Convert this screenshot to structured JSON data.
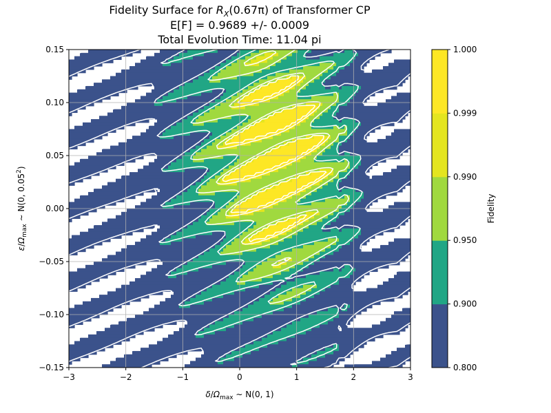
{
  "chart_data": {
    "type": "heatmap",
    "subtype": "filled-contour",
    "title": {
      "prefix": "Fidelity Surface for ",
      "math_base": "R",
      "math_sub": "X",
      "math_arg": "(0.67π)",
      "suffix": " of Transformer CP",
      "line2": "E[F] = 0.9689 +/- 0.0009",
      "line3": "Total Evolution Time: 11.04 pi"
    },
    "xlabel": {
      "symbol": "δ",
      "denominator": "Ω",
      "denominator_sub": "max",
      "dist": "N(0, 1)"
    },
    "ylabel": {
      "symbol": "ε",
      "denominator": "Ω",
      "denominator_sub": "max",
      "dist": "N(0, 0.05",
      "dist_sup": "2",
      "dist_close": ")"
    },
    "xlim": [
      -3,
      3
    ],
    "ylim": [
      -0.15,
      0.15
    ],
    "x_ticks": [
      -3,
      -2,
      -1,
      0,
      1,
      2,
      3
    ],
    "y_ticks": [
      -0.15,
      -0.1,
      -0.05,
      0.0,
      0.05,
      0.1,
      0.15
    ],
    "x_tick_labels": [
      "−3",
      "−2",
      "−1",
      "0",
      "1",
      "2",
      "3"
    ],
    "y_tick_labels": [
      "−0.15",
      "−0.10",
      "−0.05",
      "0.00",
      "0.05",
      "0.10",
      "0.15"
    ],
    "grid": true,
    "levels": [
      0.8,
      0.9,
      0.95,
      0.99,
      0.999,
      1.0
    ],
    "level_colors": [
      "#3b528b",
      "#21a685",
      "#a0d93f",
      "#e4e51f",
      "#fde725"
    ],
    "colorbar": {
      "label": "Fidelity",
      "tick_labels": [
        "0.800",
        "0.900",
        "0.950",
        "0.990",
        "0.999",
        "1.000"
      ]
    },
    "contour_line_color": "#ffffff",
    "peak_center": {
      "x": 0.6,
      "y": 0.05
    }
  }
}
